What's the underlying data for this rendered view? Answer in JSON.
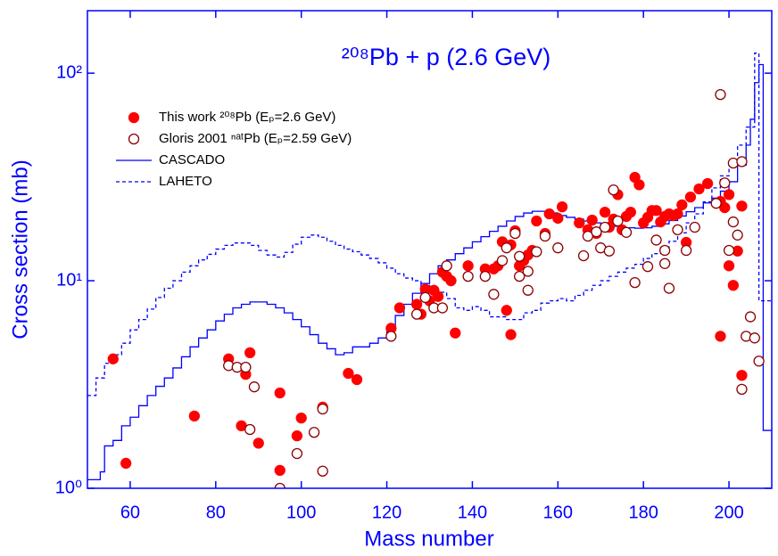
{
  "chart_data": {
    "type": "scatter",
    "title": "²⁰⁸Pb + p (2.6 GeV)",
    "x_label": "Mass number",
    "y_label": "Cross section (mb)",
    "log_y": true,
    "axis_color": "#0000ff",
    "legend_position": "upper left",
    "xlim": [
      50,
      210
    ],
    "ylim": [
      1,
      200
    ],
    "xticks": [
      60,
      80,
      100,
      120,
      140,
      160,
      180,
      200
    ],
    "yticks": [
      {
        "value": 1,
        "label": "10⁰"
      },
      {
        "value": 10,
        "label": "10¹"
      },
      {
        "value": 100,
        "label": "10²"
      }
    ],
    "series": [
      {
        "name": "This work ²⁰⁸Pb (Eₚ=2.6 GeV)",
        "style": "marker",
        "marker": "filled",
        "color": "#ff0000",
        "x": [
          56,
          59,
          75,
          83,
          86,
          87,
          88,
          90,
          95,
          95,
          99,
          100,
          105,
          111,
          113,
          121,
          123,
          127,
          128,
          129,
          130,
          131,
          132,
          133,
          134,
          135,
          136,
          139,
          143,
          145,
          146,
          147,
          148,
          149,
          149,
          150,
          151,
          152,
          153,
          154,
          155,
          157,
          158,
          160,
          161,
          165,
          167,
          168,
          169,
          171,
          172,
          173,
          174,
          175,
          176,
          177,
          178,
          179,
          180,
          181,
          182,
          183,
          184,
          185,
          186,
          187,
          188,
          189,
          190,
          191,
          193,
          195,
          198,
          198,
          199,
          200,
          200,
          201,
          202,
          203,
          203
        ],
        "values": [
          4.2,
          1.32,
          2.23,
          4.2,
          2.0,
          3.54,
          4.5,
          1.65,
          2.88,
          1.22,
          1.79,
          2.18,
          2.46,
          3.58,
          3.34,
          5.9,
          7.4,
          7.7,
          6.9,
          9.1,
          8.0,
          9.0,
          8.4,
          11.0,
          10.5,
          10,
          5.6,
          11.8,
          11.4,
          11.4,
          11.8,
          15.4,
          7.2,
          5.5,
          14.9,
          17.4,
          11.8,
          12.5,
          13.3,
          14,
          19.4,
          16.9,
          21,
          20,
          22.7,
          19,
          17.6,
          19.6,
          16.9,
          21.4,
          18.1,
          19.8,
          26,
          17.6,
          20.4,
          21.4,
          31.5,
          29,
          19,
          20.2,
          21.8,
          21.8,
          19.2,
          20.4,
          21,
          20.6,
          21,
          23.2,
          15.3,
          25.3,
          27.7,
          29.4,
          5.4,
          24.1,
          22.5,
          26,
          11.8,
          9.5,
          13.9,
          3.5,
          22.9
        ]
      },
      {
        "name": "Gloris 2001 ⁿᵃᵗPb (Eₚ=2.59 GeV)",
        "style": "marker",
        "marker": "open",
        "color": "#8b0000",
        "x": [
          83,
          85,
          87,
          88,
          89,
          99,
          95,
          103,
          105,
          105,
          121,
          127,
          129,
          131,
          133,
          134,
          139,
          143,
          145,
          147,
          148,
          150,
          151,
          151,
          153,
          153,
          155,
          157,
          160,
          166,
          167,
          169,
          170,
          171,
          172,
          173,
          174,
          176,
          178,
          181,
          183,
          185,
          185,
          186,
          188,
          190,
          192,
          197,
          198,
          199,
          200,
          201,
          201,
          202,
          203,
          203,
          204,
          205,
          206,
          207
        ],
        "values": [
          3.9,
          3.83,
          3.83,
          1.92,
          3.08,
          1.47,
          1.0,
          1.86,
          2.41,
          1.21,
          5.4,
          6.9,
          8.3,
          7.4,
          7.4,
          11.8,
          10.5,
          10.5,
          8.6,
          12.5,
          14.4,
          16.9,
          10.5,
          13.1,
          9.0,
          11.1,
          13.8,
          16.4,
          14.4,
          13.2,
          16.4,
          17.2,
          14.4,
          18.1,
          13.9,
          27.4,
          19.4,
          17.1,
          9.8,
          11.7,
          15.7,
          12.1,
          14,
          9.2,
          17.6,
          14,
          18.1,
          23.6,
          78.9,
          29.6,
          14,
          19.2,
          36.9,
          16.6,
          37.5,
          3.0,
          5.4,
          6.7,
          5.3,
          4.1
        ]
      },
      {
        "name": "CASCADO",
        "style": "step",
        "dash": "solid",
        "color": "#0000ff",
        "x": [
          50,
          53,
          54,
          56,
          58,
          60,
          62,
          64,
          66,
          68,
          70,
          72,
          74,
          76,
          78,
          80,
          82,
          84,
          86,
          88,
          90,
          92,
          94,
          96,
          98,
          100,
          102,
          104,
          106,
          108,
          110,
          112,
          114,
          116,
          118,
          120,
          122,
          124,
          126,
          128,
          130,
          132,
          134,
          136,
          138,
          140,
          142,
          144,
          146,
          148,
          150,
          152,
          154,
          156,
          158,
          160,
          162,
          164,
          166,
          168,
          170,
          172,
          174,
          176,
          178,
          180,
          182,
          184,
          186,
          188,
          190,
          192,
          194,
          196,
          198,
          200,
          202,
          204,
          205,
          206,
          207,
          208
        ],
        "values": [
          1.1,
          1.2,
          1.6,
          1.7,
          2.0,
          2.2,
          2.5,
          2.8,
          3.1,
          3.4,
          3.8,
          4.3,
          4.8,
          5.3,
          5.8,
          6.4,
          6.9,
          7.4,
          7.7,
          7.9,
          7.9,
          7.7,
          7.4,
          7.0,
          6.5,
          6.0,
          5.5,
          5.0,
          4.7,
          4.4,
          4.5,
          4.8,
          4.8,
          5.0,
          5.3,
          6.0,
          6.8,
          7.7,
          8.7,
          9.7,
          10.8,
          11.8,
          12.6,
          13.5,
          14.4,
          15.4,
          16.3,
          17.3,
          18.3,
          19.4,
          20.4,
          21.2,
          21.6,
          21.6,
          21.2,
          20.6,
          20.2,
          19.8,
          19.4,
          19.0,
          18.6,
          18.3,
          18.1,
          18.0,
          17.9,
          18.0,
          18.3,
          18.8,
          19.5,
          20.5,
          21.5,
          22.5,
          23.7,
          25,
          27,
          30,
          36,
          45,
          60,
          90,
          110,
          1.9
        ]
      },
      {
        "name": "LAHETO",
        "style": "step",
        "dash": "dashed",
        "color": "#0000ff",
        "x": [
          50,
          52,
          54,
          56,
          58,
          60,
          62,
          64,
          66,
          68,
          70,
          72,
          74,
          76,
          78,
          80,
          82,
          84,
          86,
          88,
          90,
          92,
          94,
          96,
          98,
          100,
          102,
          104,
          106,
          108,
          110,
          112,
          114,
          116,
          118,
          120,
          122,
          124,
          126,
          128,
          130,
          132,
          134,
          136,
          138,
          140,
          142,
          144,
          146,
          148,
          150,
          152,
          154,
          156,
          158,
          160,
          162,
          164,
          166,
          168,
          170,
          172,
          174,
          176,
          178,
          180,
          182,
          184,
          186,
          188,
          190,
          192,
          194,
          196,
          198,
          200,
          202,
          204,
          206,
          207,
          208
        ],
        "values": [
          2.8,
          3.4,
          4.0,
          4.4,
          5.0,
          5.8,
          6.5,
          7.3,
          8.3,
          9.2,
          10,
          11,
          11.8,
          12.6,
          13.4,
          14.2,
          14.8,
          15.2,
          15.2,
          14.8,
          14.0,
          13.3,
          13.0,
          13.7,
          15,
          16.2,
          16.6,
          16.2,
          15.5,
          14.8,
          14.2,
          13.8,
          13.3,
          12.8,
          12.2,
          11.5,
          10.8,
          10.3,
          10.0,
          9.7,
          9.2,
          8.8,
          8.2,
          7.4,
          7.2,
          7.5,
          7.2,
          6.7,
          6.7,
          6.5,
          6.5,
          7.0,
          7.2,
          7.8,
          8.0,
          8.2,
          8.0,
          8.5,
          9.0,
          9.5,
          10,
          10.5,
          11,
          11.5,
          12,
          12.8,
          13.5,
          14.5,
          15.5,
          17,
          19,
          21,
          24,
          28,
          32,
          36,
          45,
          55,
          125,
          8.0,
          8.0
        ]
      }
    ]
  }
}
